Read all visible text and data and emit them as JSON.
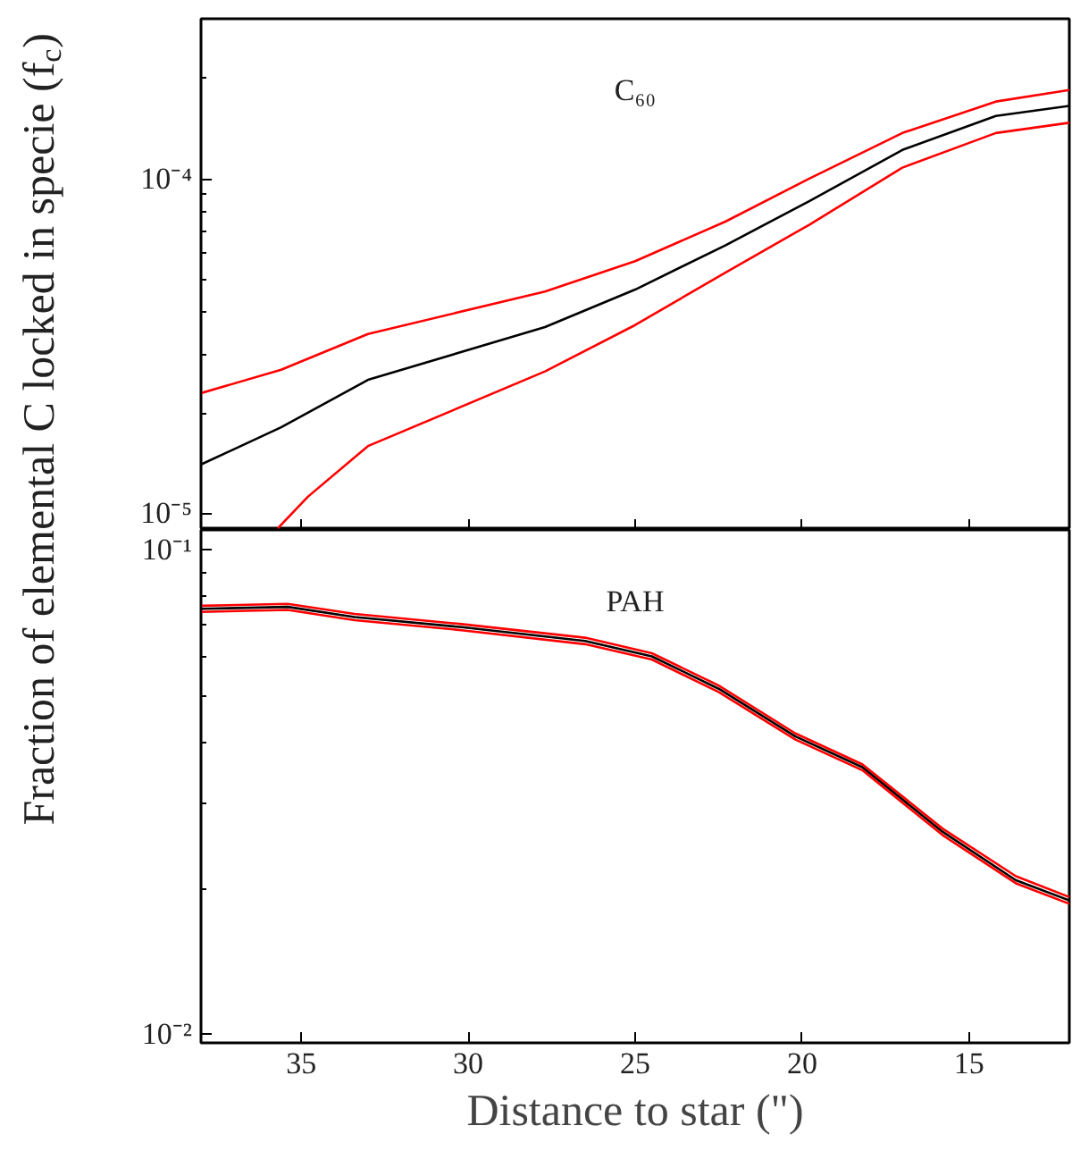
{
  "chart_data": [
    {
      "type": "line",
      "title": "C₆₀",
      "ylabel": "Fraction of elemental C locked in specie (f$_{c}$)",
      "log": "y",
      "xlim": [
        38,
        12
      ],
      "xticks": [
        35,
        30,
        25,
        20,
        15
      ],
      "ylim": [
        9e-06,
        0.0003
      ],
      "yticks": [
        {
          "value": 1e-05,
          "label": "10⁻⁵"
        },
        {
          "value": 0.0001,
          "label": "10⁻⁴"
        }
      ],
      "tick_labels": "y",
      "grid": false,
      "line_style": "solid",
      "marker": "none",
      "series": [
        {
          "color": "#ff0000",
          "x": [
            38.0,
            35.6,
            33.0,
            27.7,
            25.0,
            22.3,
            19.8,
            17.0,
            14.2,
            12.0
          ],
          "values": [
            2.3e-05,
            2.7e-05,
            3.45e-05,
            4.62e-05,
            5.69e-05,
            7.46e-05,
            0.0001,
            0.000137,
            0.00017,
            0.000184
          ]
        },
        {
          "color": "#000000",
          "x": [
            38.0,
            35.6,
            33.0,
            27.7,
            25.0,
            22.3,
            19.8,
            17.0,
            14.2,
            12.0
          ],
          "values": [
            1.41e-05,
            1.82e-05,
            2.52e-05,
            3.62e-05,
            4.68e-05,
            6.34e-05,
            8.57e-05,
            0.000122,
            0.000154,
            0.000165
          ]
        },
        {
          "color": "#ff0000",
          "x": [
            35.7,
            34.8,
            33.0,
            27.7,
            25.0,
            22.3,
            19.8,
            17.0,
            14.2,
            12.0
          ],
          "values": [
            9.1e-06,
            1.13e-05,
            1.6e-05,
            2.67e-05,
            3.67e-05,
            5.26e-05,
            7.29e-05,
            0.000108,
            0.000137,
            0.000147
          ]
        }
      ]
    },
    {
      "type": "line",
      "title": "PAH",
      "xlabel": "Distance to star (\")",
      "log": "y",
      "xlim": [
        38,
        12
      ],
      "xticks": [
        35,
        30,
        25,
        20,
        15
      ],
      "ylim": [
        0.0096,
        0.11
      ],
      "yticks": [
        {
          "value": 0.01,
          "label": "10⁻²"
        },
        {
          "value": 0.1,
          "label": "10⁻¹"
        }
      ],
      "grid": false,
      "line_style": "solid",
      "marker": "none",
      "series": [
        {
          "color": "#ff0000",
          "x": [
            38.0,
            35.4,
            33.4,
            30.2,
            26.5,
            24.5,
            22.5,
            20.2,
            18.2,
            15.8,
            13.6,
            12.0
          ],
          "values": [
            0.0767,
            0.0774,
            0.0738,
            0.0703,
            0.0659,
            0.0612,
            0.0525,
            0.0418,
            0.0361,
            0.0266,
            0.0212,
            0.0192
          ]
        },
        {
          "color": "#000000",
          "x": [
            38.0,
            35.4,
            33.4,
            30.2,
            26.5,
            24.5,
            22.5,
            20.2,
            18.2,
            15.8,
            13.6,
            12.0
          ],
          "values": [
            0.0756,
            0.0763,
            0.0727,
            0.0693,
            0.0649,
            0.0603,
            0.0517,
            0.0412,
            0.0356,
            0.0262,
            0.0208,
            0.0189
          ]
        },
        {
          "color": "#ff0000",
          "x": [
            38.0,
            35.4,
            33.4,
            30.2,
            26.5,
            24.5,
            22.5,
            20.2,
            18.2,
            15.8,
            13.6,
            12.0
          ],
          "values": [
            0.0745,
            0.0752,
            0.0716,
            0.0683,
            0.0639,
            0.0594,
            0.0509,
            0.0406,
            0.0351,
            0.0258,
            0.0205,
            0.0186
          ]
        }
      ]
    }
  ]
}
